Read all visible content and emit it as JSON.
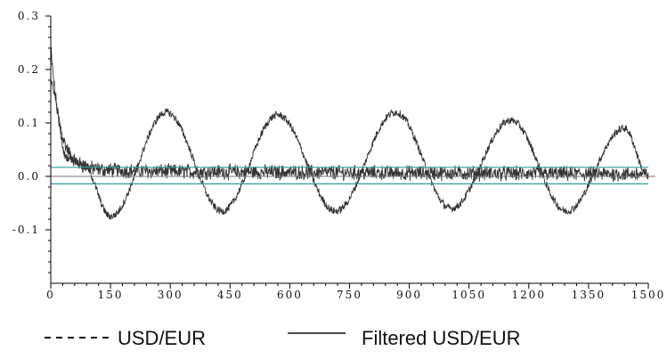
{
  "chart_data": {
    "type": "line",
    "title": "",
    "xlabel": "",
    "ylabel": "",
    "xlim": [
      0,
      1500
    ],
    "ylim": [
      -0.2,
      0.3
    ],
    "x_ticks": [
      0,
      150,
      300,
      450,
      600,
      750,
      900,
      1050,
      1200,
      1350,
      1500
    ],
    "x_tick_labels": [
      "0",
      "150",
      "300",
      "450",
      "600",
      "750",
      "900",
      "1050",
      "1200",
      "1350",
      "1500"
    ],
    "y_ticks": [
      -0.1,
      0.0,
      0.1,
      0.2,
      0.3
    ],
    "y_tick_labels": [
      "-0.1",
      "0.0",
      "0.1",
      "0.2",
      "0.3"
    ],
    "grid": false,
    "legend_position": "bottom",
    "series": [
      {
        "name": "USD/EUR",
        "legend_style": "dashed",
        "color": "#333333",
        "shape": "noisy signal near zero with a decaying spike at the start",
        "start_value": 0.23,
        "settle_value": 0.01,
        "noise_amplitude": 0.012
      },
      {
        "name": "Filtered USD/EUR",
        "legend_style": "solid",
        "color": "#333333",
        "shape": "oscillation with period of about 290 samples",
        "period": 290,
        "peaks": [
          {
            "x": 290,
            "y": 0.12
          },
          {
            "x": 570,
            "y": 0.115
          },
          {
            "x": 865,
            "y": 0.12
          },
          {
            "x": 1155,
            "y": 0.105
          },
          {
            "x": 1440,
            "y": 0.09
          }
        ],
        "troughs": [
          {
            "x": 150,
            "y": -0.075
          },
          {
            "x": 430,
            "y": -0.065
          },
          {
            "x": 715,
            "y": -0.065
          },
          {
            "x": 1005,
            "y": -0.06
          },
          {
            "x": 1295,
            "y": -0.065
          }
        ]
      }
    ],
    "reference_lines": [
      {
        "y": 0.017,
        "color": "#2e9e9e"
      },
      {
        "y": -0.014,
        "color": "#2e9e9e"
      }
    ],
    "zero_line": {
      "y": 0.0,
      "color": "#777777"
    }
  }
}
